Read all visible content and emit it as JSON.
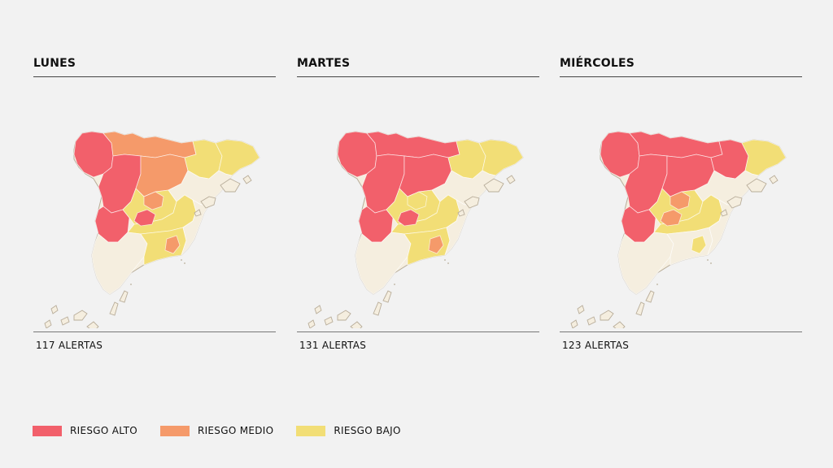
{
  "colors": {
    "background": "#f2f2f2",
    "alto": "#f2606b",
    "medio": "#f59a6a",
    "bajo": "#f2de76",
    "ninguno": "#f5eedf",
    "outline": "#b8ad9a"
  },
  "days": [
    {
      "title": "LUNES",
      "alerts": "117 ALERTAS",
      "regions": {
        "galicia": "alto",
        "cantabrico": "medio",
        "castilla_noroeste": "alto",
        "castilla_norte": "medio",
        "ebro": "bajo",
        "cataluna": "bajo",
        "extremadura": "alto",
        "centro": "bajo",
        "madrid": "medio",
        "levante": "ninguno",
        "mancha": "bajo",
        "andalucia_oeste": "ninguno",
        "andalucia_este": "bajo",
        "murcia": "ninguno",
        "baleares": "ninguno",
        "canarias": "ninguno",
        "hotspot_1": "alto",
        "hotspot_2": "medio"
      }
    },
    {
      "title": "MARTES",
      "alerts": "131 ALERTAS",
      "regions": {
        "galicia": "alto",
        "cantabrico": "alto",
        "castilla_noroeste": "alto",
        "castilla_norte": "alto",
        "ebro": "bajo",
        "cataluna": "bajo",
        "extremadura": "alto",
        "centro": "bajo",
        "madrid": "bajo",
        "levante": "ninguno",
        "mancha": "bajo",
        "andalucia_oeste": "ninguno",
        "andalucia_este": "bajo",
        "murcia": "ninguno",
        "baleares": "ninguno",
        "canarias": "ninguno",
        "hotspot_1": "alto",
        "hotspot_2": "medio"
      }
    },
    {
      "title": "MIÉRCOLES",
      "alerts": "123 ALERTAS",
      "regions": {
        "galicia": "alto",
        "cantabrico": "alto",
        "castilla_noroeste": "alto",
        "castilla_norte": "alto",
        "ebro": "alto",
        "cataluna": "bajo",
        "extremadura": "alto",
        "centro": "bajo",
        "madrid": "medio",
        "levante": "ninguno",
        "mancha": "bajo",
        "andalucia_oeste": "ninguno",
        "andalucia_este": "ninguno",
        "murcia": "ninguno",
        "baleares": "ninguno",
        "canarias": "ninguno",
        "hotspot_1": "medio",
        "hotspot_2": "bajo"
      }
    }
  ],
  "legend": [
    {
      "key": "alto",
      "label": "RIESGO ALTO"
    },
    {
      "key": "medio",
      "label": "RIESGO MEDIO"
    },
    {
      "key": "bajo",
      "label": "RIESGO BAJO"
    }
  ]
}
